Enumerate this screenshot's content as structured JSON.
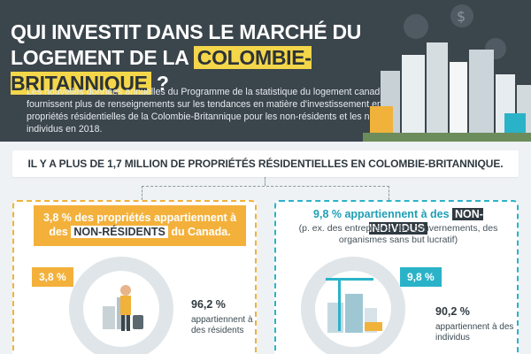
{
  "header": {
    "title_line1": "QUI INVESTIT DANS LE MARCHÉ DU",
    "title_line2_prefix": "LOGEMENT DE LA",
    "title_highlight": "COLOMBIE-BRITANNIQUE",
    "title_suffix": "?",
    "intro": "Les nouvelles données annuelles du Programme de la statistique du logement canadien fournissent plus de renseignements sur les tendances en matière d'investissement en propriétés résidentielles de la Colombie-Britannique pour les non-résidents et les non-individus en 2018."
  },
  "banner": {
    "text": "IL Y A PLUS DE 1,7 MILLION DE PROPRIÉTÉS RÉSIDENTIELLES EN COLOMBIE-BRITANNIQUE."
  },
  "left_panel": {
    "head_prefix": "3,8 % des propriétés appartiennent à des",
    "head_tag": "NON-RÉSIDENTS",
    "head_suffix": "du Canada.",
    "badge": "3,8 %",
    "stat_value": "96,2 %",
    "stat_label": "appartiennent à des résidents"
  },
  "right_panel": {
    "head_prefix": "9,8 % appartiennent à des",
    "head_tag": "NON-INDIVIDUS",
    "sub": "(p. ex. des entreprises, des gouvernements, des organismes sans but lucratif)",
    "badge": "9,8 %",
    "stat_value": "90,2 %",
    "stat_label": "appartiennent à des individus"
  },
  "colors": {
    "header_bg": "#3b454c",
    "highlight": "#f4d64a",
    "orange": "#f3b13b",
    "teal": "#2ab3c8"
  }
}
